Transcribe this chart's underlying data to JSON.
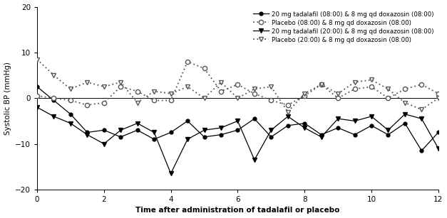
{
  "series1_label": "20 mg tadalafil (08:00) & 8 mg qd doxazosin (08:00)",
  "series2_label": "Placebo (08:00) & 8 mg qd doxazosin (08:00)",
  "series3_label": "20 mg tadalafil (20:00) & 8 mg qd doxazosin (08:00)",
  "series4_label": "Placebo (20:00) & 8 mg qd doxazosin (08:00)",
  "xlabel": "Time after administration of tadalafil or placebo",
  "ylabel": "Systolic BP (mmHg)",
  "ylim": [
    -20,
    20
  ],
  "xlim": [
    0,
    12
  ],
  "xticks": [
    0,
    2,
    4,
    6,
    8,
    10,
    12
  ],
  "yticks": [
    -20,
    -10,
    0,
    10,
    20
  ],
  "x": [
    0,
    0.5,
    1.0,
    1.5,
    2.0,
    2.5,
    3.0,
    3.5,
    4.0,
    4.5,
    5.0,
    5.5,
    6.0,
    6.5,
    7.0,
    7.5,
    8.0,
    8.5,
    9.0,
    9.5,
    10.0,
    10.5,
    11.0,
    11.5,
    12.0
  ],
  "s1_y": [
    2.5,
    -0.5,
    -3.5,
    -7.5,
    -7.0,
    -8.5,
    -7.0,
    -9.0,
    -7.5,
    -5.0,
    -8.5,
    -8.0,
    -7.0,
    -4.5,
    -8.5,
    -6.0,
    -5.5,
    -8.0,
    -6.5,
    -8.0,
    -6.0,
    -8.0,
    -5.5,
    -11.5,
    -7.5
  ],
  "s2_y": [
    0.5,
    0.0,
    -0.5,
    -1.5,
    -1.0,
    2.5,
    1.5,
    -0.5,
    -0.5,
    8.0,
    6.5,
    1.5,
    3.0,
    1.0,
    -0.5,
    -1.5,
    0.5,
    3.0,
    0.0,
    2.0,
    2.5,
    0.0,
    2.0,
    3.0,
    1.0
  ],
  "s3_y": [
    -2.0,
    -4.0,
    -5.5,
    -8.0,
    -10.0,
    -7.0,
    -5.5,
    -7.5,
    -16.5,
    -9.0,
    -7.0,
    -6.5,
    -5.0,
    -13.5,
    -7.0,
    -4.0,
    -6.5,
    -8.5,
    -4.5,
    -5.0,
    -4.0,
    -7.0,
    -3.5,
    -4.5,
    -11.0
  ],
  "s4_y": [
    8.5,
    5.0,
    2.0,
    3.5,
    2.5,
    3.5,
    -1.0,
    1.5,
    1.0,
    2.5,
    0.0,
    3.5,
    0.0,
    2.0,
    2.5,
    -3.0,
    1.0,
    3.0,
    1.0,
    3.5,
    4.0,
    2.0,
    -1.0,
    -2.5,
    0.0
  ],
  "color": "#000000",
  "background": "#ffffff",
  "line_gray": "#555555"
}
